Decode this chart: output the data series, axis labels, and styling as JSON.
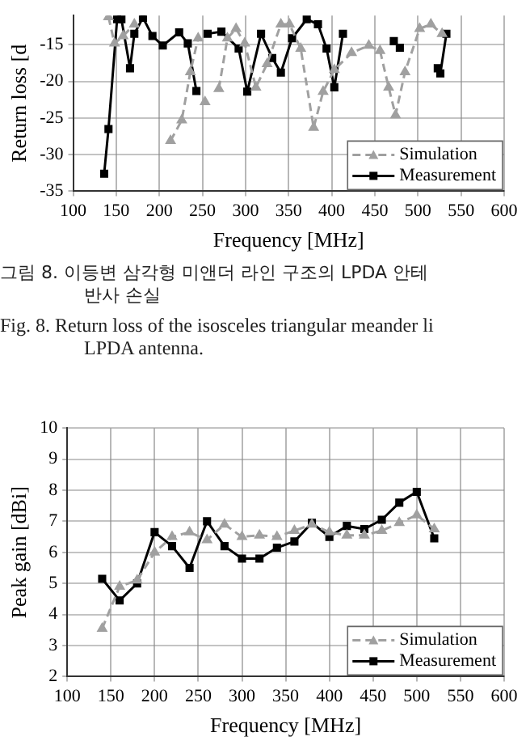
{
  "chart_data": [
    {
      "type": "line",
      "xlabel": "Frequency [MHz]",
      "ylabel": "Return loss [d",
      "xlim": [
        100,
        600
      ],
      "xticks": [
        100,
        150,
        200,
        250,
        300,
        350,
        400,
        450,
        500,
        550,
        600
      ],
      "ylim": [
        -35,
        -11
      ],
      "yticks": [
        -15,
        -20,
        -25,
        -30,
        -35
      ],
      "grid": true,
      "legend": "bottom right",
      "annotations": [
        "그림 8. 이등변 삼각형 미앤더 라인 구조의 LPDA 안테",
        "반사 손실",
        "Fig. 8. Return loss of the isosceles triangular meander li",
        "LPDA antenna."
      ],
      "series": [
        {
          "name": "Simulation",
          "color": "#a0a0a0",
          "line_style": "dashed",
          "marker": "triangle",
          "x": [
            141,
            148,
            158,
            171,
            187,
            213,
            226,
            236,
            245,
            249,
            253,
            259,
            269,
            279,
            289,
            299,
            312,
            325,
            341,
            351,
            364,
            379,
            390,
            403,
            423,
            443,
            456,
            466,
            474,
            485,
            502,
            515,
            528
          ],
          "values": [
            -11.2,
            -14.8,
            -13.8,
            -12.2,
            null,
            -28.1,
            -25.3,
            -18.7,
            -14.1,
            null,
            -22.8,
            null,
            -21,
            -14.1,
            -12.8,
            -14.8,
            -20.8,
            -17.6,
            -12.2,
            -12.2,
            -15.5,
            -26.3,
            -21.4,
            -18.4,
            -16.1,
            -15.1,
            -15.8,
            -20.8,
            -24.6,
            -18.7,
            -12.8,
            -12.2,
            -13.5
          ]
        },
        {
          "name": "Measurement",
          "color": "#000000",
          "line_style": "solid",
          "marker": "square",
          "x": [
            136,
            141,
            151,
            156,
            166,
            171,
            181,
            192,
            204,
            223,
            233,
            243,
            249,
            256,
            272,
            292,
            302,
            318,
            331,
            341,
            354,
            371,
            384,
            394,
            403,
            413,
            423,
            462,
            472,
            479,
            487,
            518,
            523,
            526,
            533
          ],
          "values": [
            -32.6,
            -26.5,
            -11.5,
            -11.5,
            -18.2,
            -13.5,
            -11.3,
            -13.8,
            -15.1,
            -13.3,
            -14.8,
            -21.3,
            null,
            -13.5,
            -13.2,
            -15.5,
            -21.4,
            -13.5,
            -16.8,
            -18.8,
            -14.1,
            -11.5,
            -12.2,
            -15.5,
            -20.8,
            -13.5,
            null,
            null,
            -14.5,
            -15.4,
            null,
            null,
            -18.2,
            -18.9,
            -13.5
          ]
        }
      ]
    },
    {
      "type": "line",
      "xlabel": "Frequency [MHz]",
      "ylabel": "Peak gain [dBi]",
      "xlim": [
        100,
        600
      ],
      "xticks": [
        100,
        150,
        200,
        250,
        300,
        350,
        400,
        450,
        500,
        550,
        600
      ],
      "ylim": [
        2,
        10
      ],
      "yticks": [
        2,
        3,
        4,
        5,
        6,
        7,
        8,
        9,
        10
      ],
      "grid": true,
      "legend": "bottom right",
      "x": [
        140,
        160,
        180,
        200,
        220,
        240,
        260,
        280,
        300,
        320,
        340,
        360,
        380,
        400,
        420,
        440,
        460,
        480,
        500,
        520
      ],
      "series": [
        {
          "name": "Simulation",
          "color": "#a0a0a0",
          "line_style": "dashed",
          "marker": "triangle",
          "values": [
            3.55,
            4.9,
            5.1,
            6.0,
            6.5,
            6.65,
            6.4,
            6.9,
            6.5,
            6.55,
            6.5,
            6.7,
            6.9,
            6.65,
            6.55,
            6.55,
            6.7,
            6.95,
            7.2,
            6.75
          ]
        },
        {
          "name": "Measurement",
          "color": "#000000",
          "line_style": "solid",
          "marker": "square",
          "values": [
            5.15,
            4.45,
            5.0,
            6.65,
            6.2,
            5.5,
            7.0,
            6.2,
            5.8,
            5.8,
            6.15,
            6.35,
            6.95,
            6.5,
            6.85,
            6.75,
            7.05,
            7.6,
            7.95,
            6.45
          ]
        }
      ]
    }
  ]
}
